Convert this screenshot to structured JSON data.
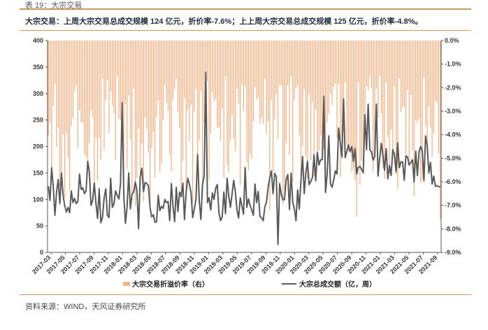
{
  "figure_number": "表 19：大宗交易",
  "caption": "大宗交易：上周大宗交易总成交规模 124 亿元，折价率-7.6%；上上周大宗交易总成交规模 125 亿元，折价率-4.8%。",
  "source": "资料来源：WIND，天风证券研究所",
  "colors": {
    "bar": "#f4b183",
    "line": "#595959",
    "rule": "#c89a5a"
  },
  "chart_data": {
    "type": "bar",
    "title": "",
    "x_tick_labels": [
      "2017-03",
      "2017-05",
      "2017-07",
      "2017-09",
      "2017-11",
      "2018-01",
      "2018-03",
      "2018-05",
      "2018-07",
      "2018-09",
      "2018-11",
      "2019-01",
      "2019-03",
      "2019-05",
      "2019-07",
      "2019-09",
      "2019-11",
      "2020-01",
      "2020-03",
      "2020-05",
      "2020-07",
      "2020-09",
      "2020-11",
      "2021-01",
      "2021-03",
      "2021-05",
      "2021-07",
      "2021-09"
    ],
    "y_left": {
      "label": "",
      "min": 0,
      "max": 400,
      "ticks": [
        "400",
        "350",
        "300",
        "250",
        "200",
        "150",
        "100",
        "50",
        "0"
      ]
    },
    "y_right": {
      "label": "",
      "min": -9,
      "max": 0,
      "ticks": [
        "0.0%",
        "-1.0%",
        "-2.0%",
        "-3.0%",
        "-4.0%",
        "-5.0%",
        "-6.0%",
        "-7.0%",
        "-8.0%",
        "-9.0%"
      ]
    },
    "series": [
      {
        "name": "大宗交易折溢价率（右）",
        "type": "bar",
        "axis": "right",
        "values": []
      },
      {
        "name": "大宗总成交额（亿，周）",
        "type": "line",
        "axis": "left",
        "values": []
      }
    ],
    "x": [],
    "legend_position": "bottom",
    "grid": false
  }
}
